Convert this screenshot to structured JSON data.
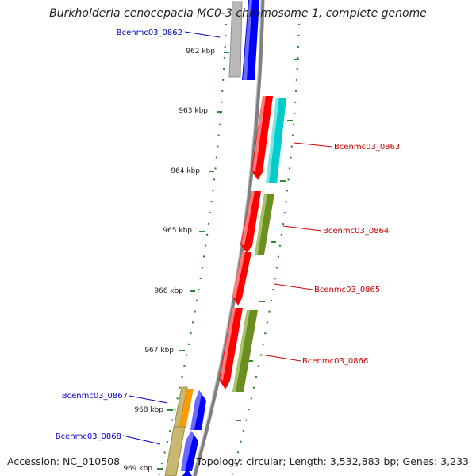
{
  "title": "Burkholderia cenocepacia MC0-3 chromosome 1, complete genome",
  "footer": {
    "accession": "Accession: NC_010508",
    "summary": "Topology: circular; Length: 3,532,883 bp; Genes: 3,233"
  },
  "ticks": [
    "962 kbp",
    "963 kbp",
    "964 kbp",
    "965 kbp",
    "966 kbp",
    "967 kbp",
    "968 kbp",
    "969 kbp"
  ],
  "genes": [
    {
      "label": "Bcenmc03_0862",
      "color": "#0000cc"
    },
    {
      "label": "Bcenmc03_0863",
      "color": "#cc0000"
    },
    {
      "label": "Bcenmc03_0864",
      "color": "#cc0000"
    },
    {
      "label": "Bcenmc03_0865",
      "color": "#cc0000"
    },
    {
      "label": "Bcenmc03_0866",
      "color": "#cc0000"
    },
    {
      "label": "Bcenmc03_0867",
      "color": "#0000cc"
    },
    {
      "label": "Bcenmc03_0868",
      "color": "#0000cc"
    }
  ],
  "colors": {
    "backbone": "#808080",
    "tick": "#2e8b2e",
    "forward_cds": "#ff0000",
    "reverse_cds": "#0000ff",
    "cog_cyan": "#00cccc",
    "cog_olive": "#6b8e23",
    "cog_gray": "#b0b0b0",
    "cog_orange": "#ff9900",
    "cog_khaki": "#c8b870"
  }
}
